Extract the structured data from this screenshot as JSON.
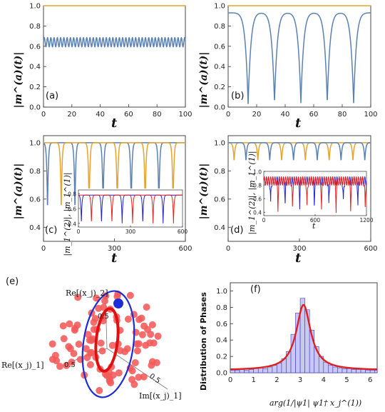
{
  "colors": {
    "blue": "#5b81b4",
    "orange": "#e6a32e",
    "red": "#f25a5a",
    "deep_blue": "#1f2bd6",
    "hist_fill": "#c8c8f2",
    "fit_red": "#e02020"
  },
  "chart_data": [
    {
      "id": "a",
      "type": "line",
      "panel_label": "(a)",
      "xlabel": "t",
      "ylabel": "|m^(a)(t)|",
      "xlim": [
        0,
        100
      ],
      "ylim": [
        0,
        1.0
      ],
      "xticks": [
        "0",
        "20",
        "40",
        "60",
        "80",
        "100"
      ],
      "yticks": [
        "0.0",
        "0.2",
        "0.4",
        "0.6",
        "0.8",
        "1.0"
      ],
      "series": [
        {
          "color": "orange",
          "x": [
            0,
            100
          ],
          "y": [
            1.0,
            1.0
          ]
        },
        {
          "color": "blue",
          "model": "oscillation",
          "mean": 0.64,
          "amplitude": 0.045,
          "period": 2.3
        }
      ]
    },
    {
      "id": "b",
      "type": "line",
      "panel_label": "(b)",
      "xlabel": "t",
      "ylabel": "|m^(a)(t)|",
      "xlim": [
        0,
        100
      ],
      "ylim": [
        0,
        1.0
      ],
      "xticks": [
        "0",
        "20",
        "40",
        "60",
        "80",
        "100"
      ],
      "yticks": [
        "0.0",
        "0.2",
        "0.4",
        "0.6",
        "0.8",
        "1.0"
      ],
      "series": [
        {
          "color": "orange",
          "x": [
            0,
            100
          ],
          "y": [
            1.0,
            1.0
          ]
        },
        {
          "color": "blue",
          "model": "dips",
          "baseline": 0.93,
          "dip_centers": [
            14,
            32.5,
            51,
            69.5,
            88
          ],
          "dip_min": [
            0.03,
            0.05,
            0.04,
            0.05,
            0.04
          ],
          "dip_width": 3.2
        }
      ]
    },
    {
      "id": "c",
      "type": "line",
      "panel_label": "(c)",
      "xlabel": "t",
      "ylabel": "|m^(a)(t)|",
      "xlim": [
        0,
        600
      ],
      "ylim": [
        0.3,
        1.05
      ],
      "xticks": [
        "0",
        "300",
        "600"
      ],
      "yticks": [
        "0.4",
        "0.6",
        "0.8",
        "1.0"
      ],
      "series": [
        {
          "color": "blue",
          "model": "dips",
          "baseline": 1.0,
          "dip_centers": [
            17,
            133,
            252,
            371,
            488
          ],
          "dip_min": [
            0.52,
            0.52,
            0.52,
            0.52,
            0.52
          ],
          "dip_width": 6
        },
        {
          "color": "orange",
          "model": "dips",
          "baseline": 1.0,
          "dip_centers": [
            75,
            193,
            312,
            430,
            548
          ],
          "dip_min": [
            0.52,
            0.52,
            0.52,
            0.52,
            0.52
          ],
          "dip_width": 6
        }
      ],
      "inset": {
        "ylabel": "|m_1^(2)|, |m_1^(1)|",
        "xlim": [
          0,
          600
        ],
        "ylim": [
          0.35,
          0.85
        ],
        "xticks": [
          "0",
          "300",
          "600"
        ],
        "yticks": [
          "0.4",
          "0.6",
          "0.8"
        ],
        "series": [
          {
            "color": "#2222cc",
            "model": "dips",
            "baseline": 0.78,
            "dip_centers": [
              17,
              133,
              252,
              371,
              488
            ],
            "dip_min": [
              0.4,
              0.4,
              0.4,
              0.4,
              0.4
            ],
            "dip_width": 6
          },
          {
            "color": "#e22222",
            "model": "dips",
            "baseline": 0.78,
            "dip_centers": [
              75,
              193,
              312,
              430,
              548
            ],
            "dip_min": [
              0.4,
              0.4,
              0.4,
              0.4,
              0.4
            ],
            "dip_width": 6
          }
        ]
      }
    },
    {
      "id": "d",
      "type": "line",
      "panel_label": "(d)",
      "xlabel": "t",
      "ylabel": "|m^(a)(t)|",
      "xlim": [
        0,
        600
      ],
      "ylim": [
        0.3,
        1.05
      ],
      "xticks": [
        "0",
        "300",
        "600"
      ],
      "yticks": [
        "0.4",
        "0.6",
        "0.8",
        "1.0"
      ],
      "series": [
        {
          "color": "orange",
          "model": "dips",
          "baseline": 1.0,
          "dip_centers": [
            25,
            125,
            225,
            325,
            425,
            525
          ],
          "dip_min": [
            0.87,
            0.87,
            0.87,
            0.87,
            0.87,
            0.87
          ],
          "dip_width": 7
        },
        {
          "color": "blue",
          "model": "dips",
          "baseline": 1.0,
          "dip_centers": [
            75,
            175,
            275,
            375,
            475,
            575
          ],
          "dip_min": [
            0.87,
            0.87,
            0.87,
            0.87,
            0.87,
            0.87
          ],
          "dip_width": 7
        }
      ],
      "inset": {
        "ylabel": "|m_1^(2)|, |m_1^(1)|",
        "xlabel": "t",
        "xlim": [
          0,
          1200
        ],
        "ylim": [
          0.35,
          1.0
        ],
        "xticks": [
          "0",
          "600",
          "1200"
        ],
        "yticks": [
          "0.4",
          "0.6",
          "0.8",
          "1.0"
        ],
        "series": [
          {
            "color": "#2222cc",
            "model": "oscdips",
            "baseline": 0.86,
            "amp": 0.06,
            "period": 25,
            "dip_centers": [
              80,
              250,
              420,
              590,
              760,
              930,
              1100
            ],
            "dip_min": [
              0.5,
              0.5,
              0.5,
              0.5,
              0.5,
              0.5,
              0.5
            ],
            "dip_width": 9
          },
          {
            "color": "#e22222",
            "model": "oscdips",
            "baseline": 0.86,
            "amp": 0.06,
            "period": 25,
            "dip_centers": [
              165,
              335,
              505,
              675,
              845,
              1015,
              1185
            ],
            "dip_min": [
              0.42,
              0.42,
              0.42,
              0.42,
              0.42,
              0.42,
              0.42
            ],
            "dip_width": 9
          }
        ]
      }
    },
    {
      "id": "e",
      "type": "scatter",
      "panel_label": "(e)",
      "axis_labels": {
        "z": "Re[(x_j)_2]",
        "x": "Re[(x_j)_1]",
        "y": "Im[(x_j)_1]"
      },
      "tick_labels": [
        "0.5",
        "0.5",
        "0.5"
      ]
    },
    {
      "id": "f",
      "type": "bar",
      "panel_label": "(f)",
      "xlabel": "arg(1/|ψ1| ψ1† x_j^(1))",
      "ylabel": "Distribution of Phases",
      "xlim": [
        0,
        6.3
      ],
      "ylim": [
        0,
        1.1
      ],
      "xticks": [
        "0",
        "1",
        "2",
        "3",
        "4",
        "5",
        "6"
      ],
      "yticks": [
        "0.0",
        "0.2",
        "0.4",
        "0.6",
        "0.8",
        "1.0"
      ],
      "bin_width": 0.2,
      "bins_start": 0,
      "values": [
        0.03,
        0.03,
        0.04,
        0.03,
        0.04,
        0.05,
        0.06,
        0.05,
        0.07,
        0.09,
        0.12,
        0.17,
        0.26,
        0.47,
        0.73,
        0.91,
        0.77,
        0.52,
        0.32,
        0.2,
        0.13,
        0.09,
        0.07,
        0.06,
        0.05,
        0.05,
        0.04,
        0.04,
        0.04,
        0.03,
        0.03,
        0.03
      ],
      "fit": {
        "model": "lorentzian",
        "center": 3.14,
        "gamma": 0.38,
        "peak": 0.83,
        "floor": 0.03
      }
    }
  ]
}
